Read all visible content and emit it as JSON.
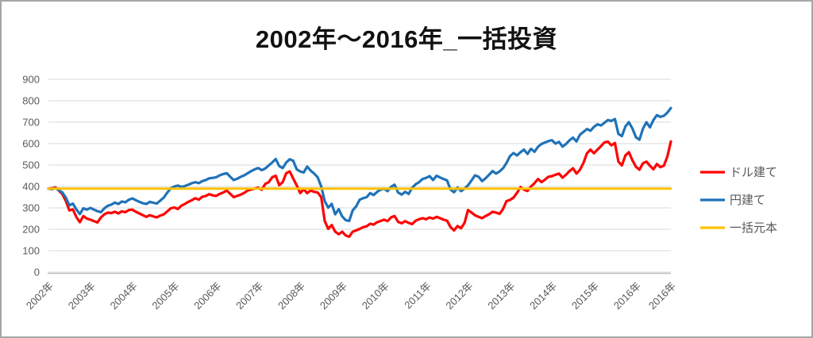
{
  "window": {
    "background": "#ffffff",
    "frame_border_color": "#a6a6a6"
  },
  "chart_data": {
    "type": "line",
    "title": "2002年〜2016年_一括投資",
    "xlabel": "",
    "ylabel": "",
    "ylim": [
      0,
      900
    ],
    "y_ticks": [
      0,
      100,
      200,
      300,
      400,
      500,
      600,
      700,
      800,
      900
    ],
    "grid": "horizontal",
    "gridline_color": "#d9d9d9",
    "axis_line_color": "#bfbfbf",
    "tick_label_color": "#595959",
    "legend_position": "right",
    "x_tick_labels": [
      "2002年",
      "2003年",
      "2004年",
      "2005年",
      "2006年",
      "2007年",
      "2008年",
      "2009年",
      "2010年",
      "2011年",
      "2012年",
      "2013年",
      "2014年",
      "2015年",
      "2016年",
      "2016年"
    ],
    "x_tick_indices": [
      0,
      12,
      24,
      36,
      48,
      60,
      72,
      84,
      96,
      108,
      120,
      132,
      144,
      156,
      168,
      178
    ],
    "x_unit": "monthly points, Jan 2002 - Nov 2016",
    "series": [
      {
        "id": "dollar",
        "name": "ドル建て",
        "color": "#ff0000",
        "values": [
          390,
          391,
          396,
          380,
          364,
          331,
          288,
          293,
          257,
          233,
          262,
          250,
          245,
          238,
          232,
          255,
          270,
          278,
          276,
          282,
          274,
          284,
          280,
          290,
          292,
          282,
          274,
          266,
          258,
          266,
          260,
          256,
          264,
          270,
          284,
          298,
          302,
          295,
          310,
          318,
          328,
          336,
          345,
          338,
          352,
          356,
          364,
          358,
          356,
          365,
          372,
          381,
          365,
          350,
          356,
          362,
          370,
          381,
          386,
          390,
          394,
          385,
          412,
          420,
          443,
          450,
          406,
          420,
          462,
          470,
          437,
          405,
          369,
          387,
          369,
          381,
          375,
          372,
          350,
          239,
          202,
          220,
          189,
          177,
          189,
          171,
          165,
          189,
          195,
          202,
          210,
          214,
          226,
          222,
          233,
          239,
          245,
          238,
          256,
          262,
          235,
          228,
          238,
          230,
          224,
          240,
          247,
          252,
          247,
          255,
          250,
          258,
          252,
          245,
          240,
          210,
          195,
          215,
          205,
          230,
          290,
          278,
          265,
          258,
          252,
          262,
          270,
          282,
          278,
          272,
          295,
          332,
          337,
          348,
          370,
          397,
          385,
          379,
          400,
          415,
          435,
          420,
          432,
          445,
          448,
          455,
          460,
          441,
          455,
          472,
          485,
          460,
          478,
          510,
          555,
          572,
          555,
          572,
          588,
          606,
          609,
          592,
          603,
          516,
          498,
          545,
          560,
          522,
          492,
          478,
          508,
          516,
          497,
          480,
          505,
          490,
          497,
          540,
          610
        ]
      },
      {
        "id": "yen",
        "name": "円建て",
        "color": "#1f72b8",
        "values": [
          390,
          387,
          393,
          382,
          372,
          347,
          312,
          320,
          293,
          271,
          298,
          292,
          300,
          292,
          285,
          280,
          298,
          310,
          315,
          325,
          318,
          330,
          326,
          338,
          344,
          336,
          328,
          322,
          318,
          328,
          324,
          320,
          334,
          348,
          372,
          392,
          400,
          404,
          398,
          402,
          408,
          415,
          420,
          415,
          425,
          430,
          438,
          440,
          443,
          452,
          458,
          462,
          445,
          430,
          436,
          445,
          452,
          462,
          472,
          480,
          486,
          476,
          484,
          498,
          512,
          528,
          495,
          486,
          512,
          527,
          520,
          480,
          470,
          465,
          493,
          474,
          460,
          443,
          400,
          332,
          301,
          319,
          270,
          294,
          260,
          243,
          239,
          288,
          307,
          338,
          345,
          350,
          369,
          360,
          375,
          385,
          390,
          378,
          398,
          408,
          372,
          362,
          375,
          365,
          394,
          410,
          420,
          435,
          440,
          448,
          430,
          450,
          442,
          435,
          428,
          385,
          373,
          395,
          378,
          390,
          405,
          428,
          452,
          445,
          425,
          438,
          455,
          472,
          460,
          470,
          485,
          510,
          542,
          556,
          545,
          560,
          572,
          552,
          576,
          562,
          585,
          598,
          605,
          612,
          616,
          600,
          608,
          586,
          598,
          615,
          628,
          610,
          642,
          655,
          668,
          660,
          678,
          690,
          685,
          697,
          710,
          706,
          715,
          645,
          635,
          680,
          700,
          670,
          630,
          618,
          670,
          700,
          676,
          710,
          733,
          725,
          730,
          745,
          766
        ]
      },
      {
        "id": "principal",
        "name": "一括元本",
        "color": "#ffc000",
        "constant": 390
      }
    ]
  }
}
